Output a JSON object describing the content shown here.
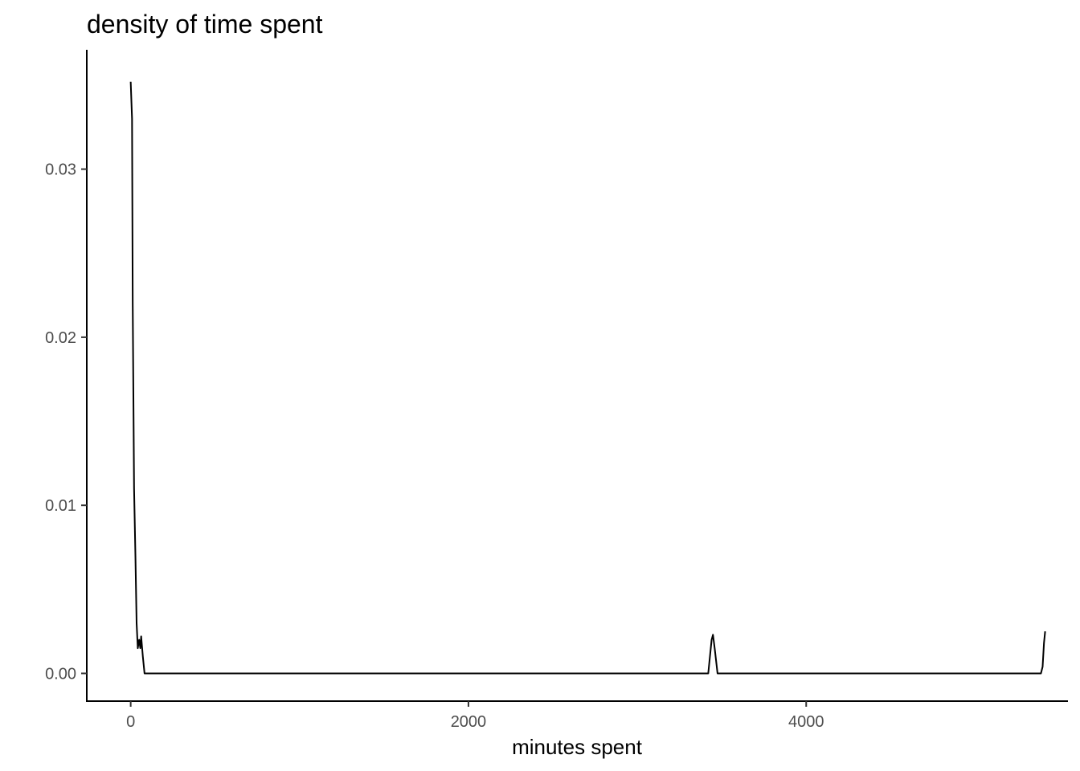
{
  "chart_data": {
    "type": "line",
    "title": "density of time spent",
    "xlabel": "minutes spent",
    "ylabel": "",
    "xlim": [
      -260,
      5550
    ],
    "ylim": [
      -0.00165,
      0.0371
    ],
    "xticks": [
      0,
      2000,
      4000
    ],
    "xtick_labels": [
      "0",
      "2000",
      "4000"
    ],
    "yticks": [
      0.0,
      0.01,
      0.02,
      0.03
    ],
    "ytick_labels": [
      "0.00",
      "0.01",
      "0.02",
      "0.03"
    ],
    "grid": false,
    "legend": "none",
    "series": [
      {
        "color": "#000000",
        "points": [
          [
            0,
            0.0352
          ],
          [
            8,
            0.033
          ],
          [
            12,
            0.022
          ],
          [
            20,
            0.011
          ],
          [
            28,
            0.007
          ],
          [
            35,
            0.003
          ],
          [
            42,
            0.0015
          ],
          [
            50,
            0.002
          ],
          [
            57,
            0.0015
          ],
          [
            62,
            0.0022
          ],
          [
            72,
            0.001
          ],
          [
            82,
            0.0
          ],
          [
            400,
            0.0
          ],
          [
            1000,
            0.0
          ],
          [
            2000,
            0.0
          ],
          [
            3000,
            0.0
          ],
          [
            3420,
            0.0
          ],
          [
            3440,
            0.002
          ],
          [
            3448,
            0.0023
          ],
          [
            3458,
            0.0015
          ],
          [
            3475,
            0.0
          ],
          [
            4000,
            0.0
          ],
          [
            5000,
            0.0
          ],
          [
            5390,
            0.0
          ],
          [
            5400,
            0.0004
          ],
          [
            5408,
            0.0018
          ],
          [
            5415,
            0.0025
          ]
        ]
      }
    ]
  }
}
